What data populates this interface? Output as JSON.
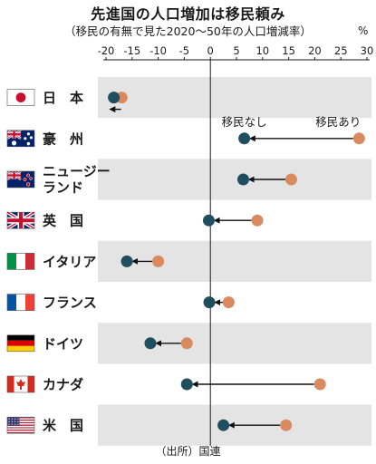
{
  "chart_data": {
    "type": "dot-arrow",
    "title": "先進国の人口増加は移民頼み",
    "subtitle": "（移民の有無で見た2020～50年の人口増減率）",
    "unit": "%",
    "source": "（出所）国連",
    "x_ticks": [
      -20,
      -15,
      -10,
      -5,
      0,
      5,
      10,
      15,
      20,
      25,
      30
    ],
    "xlim": [
      -20,
      30
    ],
    "legend": {
      "without_label": "移民なし",
      "with_label": "移民あり",
      "placement": "above-australia"
    },
    "colors": {
      "without": "#1f4e5f",
      "with": "#d98b5f",
      "band": "#e4e4e4",
      "arrow": "#111111"
    },
    "series": [
      {
        "name": "移民なし",
        "key": "without"
      },
      {
        "name": "移民あり",
        "key": "with"
      }
    ],
    "categories": [
      {
        "label": "日　本",
        "flag": "japan-flag",
        "with": -17,
        "without": -18.5
      },
      {
        "label": "豪　州",
        "flag": "australia-flag",
        "with": 28.5,
        "without": 6.5
      },
      {
        "label": "ニュージーランド",
        "label_lines": [
          "ニュージー",
          "ランド"
        ],
        "flag": "new-zealand-flag",
        "with": 15.5,
        "without": 6.3
      },
      {
        "label": "英　国",
        "flag": "uk-flag",
        "with": 9,
        "without": -0.3
      },
      {
        "label": "イタリア",
        "flag": "italy-flag",
        "with": -10,
        "without": -16
      },
      {
        "label": "フランス",
        "flag": "france-flag",
        "with": 3.5,
        "without": -0.2
      },
      {
        "label": "ドイツ",
        "flag": "germany-flag",
        "with": -4.5,
        "without": -11.5
      },
      {
        "label": "カナダ",
        "flag": "canada-flag",
        "with": 21,
        "without": -4.5
      },
      {
        "label": "米　国",
        "flag": "us-flag",
        "with": 14.5,
        "without": 2.5
      }
    ]
  }
}
